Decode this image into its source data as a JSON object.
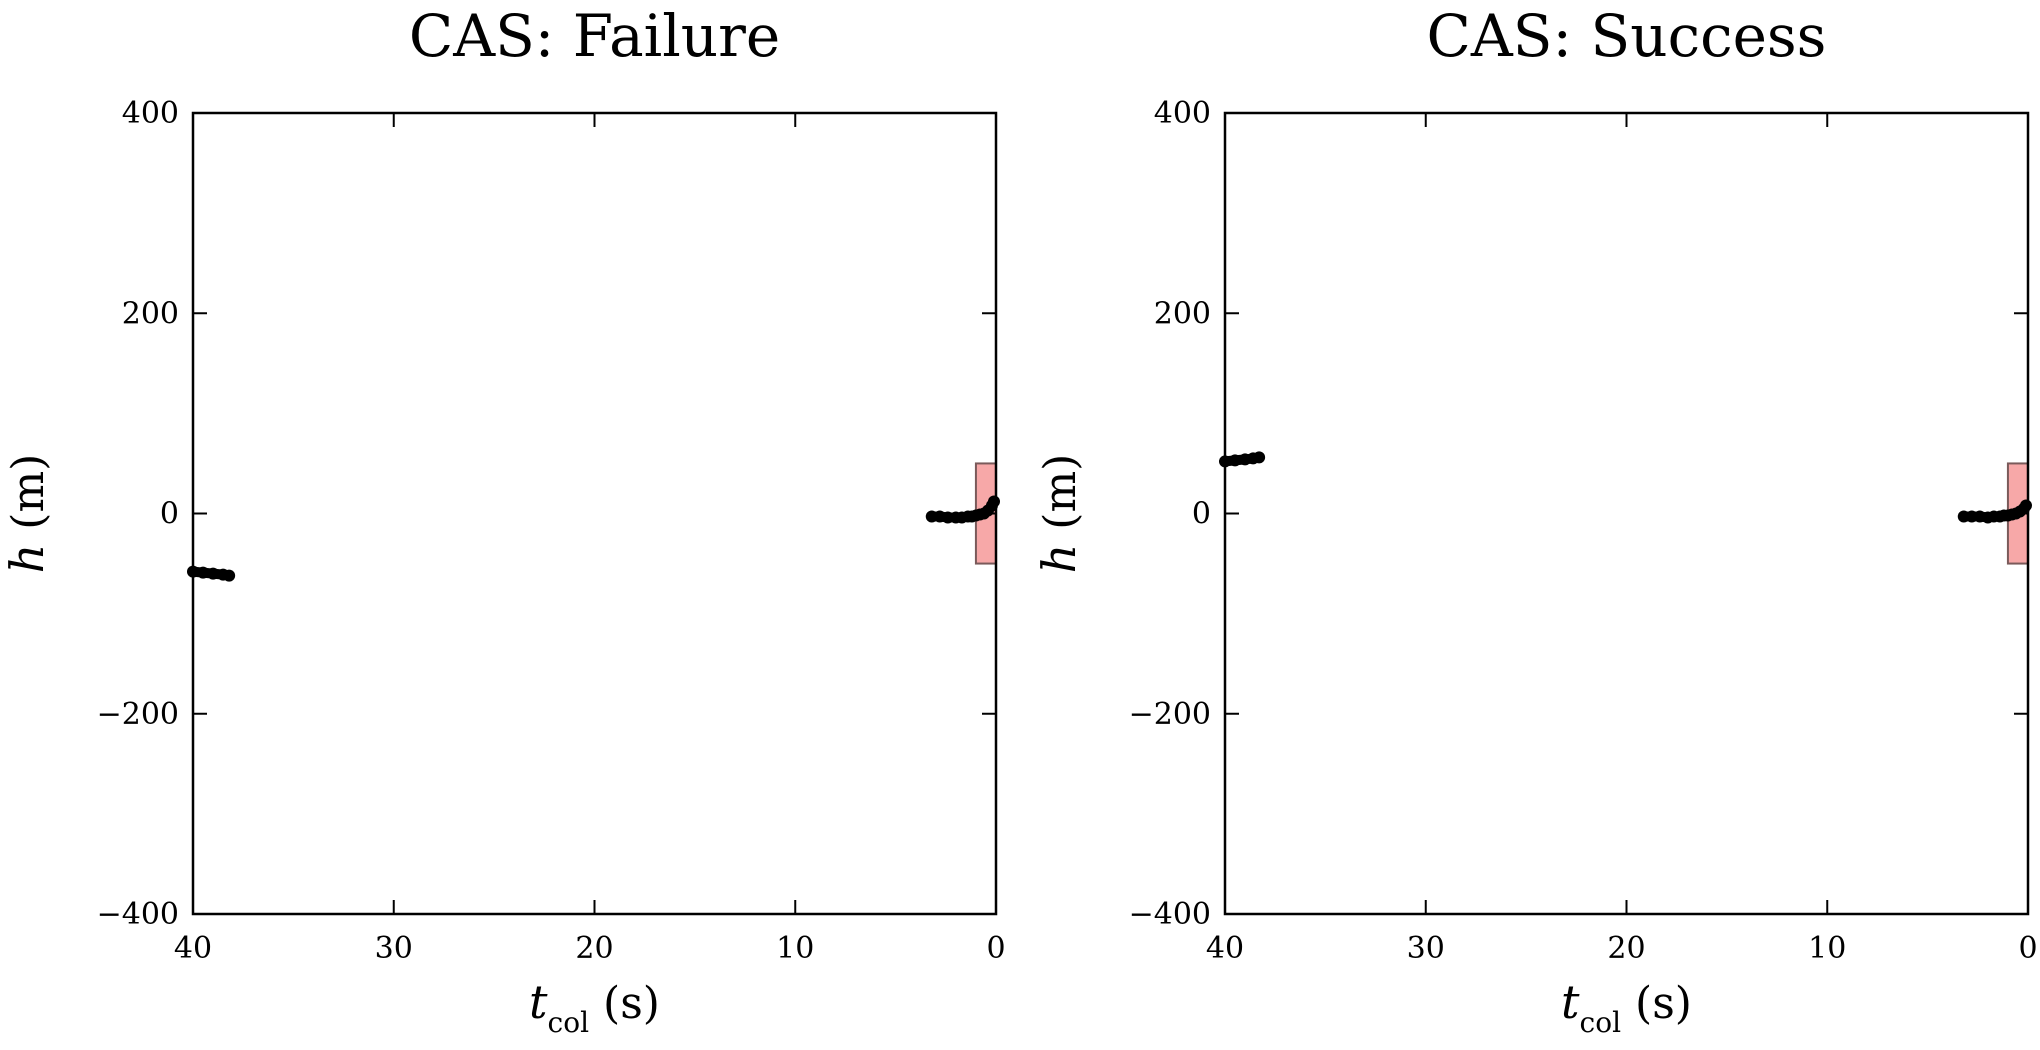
{
  "chart_data": [
    {
      "type": "scatter",
      "title": "CAS: Failure",
      "xlabel": {
        "symbol": "t",
        "subscript": "col",
        "unit": "(s)"
      },
      "ylabel": {
        "symbol": "h",
        "unit": "(m)"
      },
      "xlim": [
        40,
        0
      ],
      "ylim": [
        -400,
        400
      ],
      "xticks": [
        40,
        30,
        20,
        10,
        0
      ],
      "yticks": [
        400,
        200,
        0,
        -200,
        -400
      ],
      "xtick_labels": [
        "40",
        "30",
        "20",
        "10",
        "0"
      ],
      "ytick_labels": [
        "400",
        "200",
        "0",
        "−200",
        "−400"
      ],
      "grid": false,
      "region": {
        "x": [
          1,
          0
        ],
        "y": [
          -50,
          50
        ],
        "color": "#f7a8a8"
      },
      "series": [
        {
          "color": "#000000",
          "points": [
            [
              40,
              -58
            ],
            [
              39.5,
              -59
            ],
            [
              39,
              -60
            ],
            [
              38.5,
              -61
            ],
            [
              38.2,
              -62
            ]
          ]
        },
        {
          "color": "#000000",
          "points": [
            [
              3.2,
              -3
            ],
            [
              2.8,
              -3
            ],
            [
              2.4,
              -4
            ],
            [
              2.0,
              -4
            ],
            [
              1.7,
              -4
            ],
            [
              1.4,
              -3
            ],
            [
              1.2,
              -3
            ],
            [
              1.0,
              -2
            ],
            [
              0.8,
              -1
            ],
            [
              0.6,
              0
            ],
            [
              0.4,
              3
            ],
            [
              0.2,
              8
            ],
            [
              0.1,
              12
            ]
          ]
        }
      ]
    },
    {
      "type": "scatter",
      "title": "CAS: Success",
      "xlabel": {
        "symbol": "t",
        "subscript": "col",
        "unit": "(s)"
      },
      "ylabel": {
        "symbol": "h",
        "unit": "(m)"
      },
      "xlim": [
        40,
        0
      ],
      "ylim": [
        -400,
        400
      ],
      "xticks": [
        40,
        30,
        20,
        10,
        0
      ],
      "yticks": [
        400,
        200,
        0,
        -200,
        -400
      ],
      "xtick_labels": [
        "40",
        "30",
        "20",
        "10",
        "0"
      ],
      "ytick_labels": [
        "400",
        "200",
        "0",
        "−200",
        "−400"
      ],
      "grid": false,
      "region": {
        "x": [
          1,
          0
        ],
        "y": [
          -50,
          50
        ],
        "color": "#f7a8a8"
      },
      "series": [
        {
          "color": "#000000",
          "points": [
            [
              40,
              52
            ],
            [
              39.5,
              53
            ],
            [
              39,
              54
            ],
            [
              38.6,
              55
            ],
            [
              38.3,
              56
            ]
          ]
        },
        {
          "color": "#000000",
          "points": [
            [
              3.2,
              -3
            ],
            [
              2.8,
              -3
            ],
            [
              2.4,
              -3
            ],
            [
              2.0,
              -4
            ],
            [
              1.7,
              -3
            ],
            [
              1.4,
              -3
            ],
            [
              1.2,
              -2
            ],
            [
              1.0,
              -2
            ],
            [
              0.8,
              -1
            ],
            [
              0.6,
              0
            ],
            [
              0.4,
              2
            ],
            [
              0.2,
              5
            ],
            [
              0.1,
              8
            ]
          ]
        }
      ]
    }
  ]
}
